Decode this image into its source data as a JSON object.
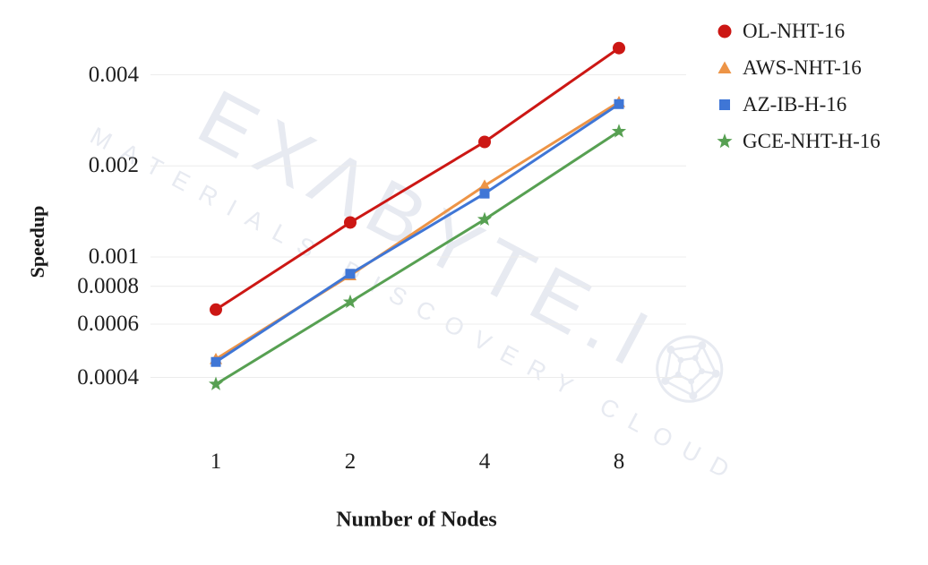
{
  "watermark": {
    "line1": "EXΛBYTE.I",
    "line2": "MATERIALS DISCOVERY CLOUD",
    "color": "#e7eaf1"
  },
  "axes": {
    "y_title": "Speedup",
    "x_title": "Number of Nodes",
    "y_ticks": [
      "0.004",
      "0.002",
      "0.001",
      "0.0008",
      "0.0006",
      "0.0004"
    ],
    "x_ticks": [
      "1",
      "2",
      "4",
      "8"
    ]
  },
  "chart_data": {
    "type": "line",
    "title": "",
    "xlabel": "Number of Nodes",
    "ylabel": "Speedup",
    "x": [
      1,
      2,
      4,
      8
    ],
    "x_scale": "log2",
    "y_scale": "log10",
    "ylim": [
      0.00033,
      0.0052
    ],
    "grid": "horizontal",
    "gridline_color": "#ececec",
    "gridline_values": [
      0.004,
      0.002,
      0.001,
      0.0008,
      0.0006,
      0.0004
    ],
    "legend_position": "right",
    "series": [
      {
        "name": "OL-NHT-16",
        "color": "#cc1714",
        "marker": "circle",
        "values": [
          0.00067,
          0.0013,
          0.0024,
          0.0049
        ]
      },
      {
        "name": "AWS-NHT-16",
        "color": "#ed9446",
        "marker": "triangle",
        "values": [
          0.00046,
          0.00087,
          0.00172,
          0.00325
        ]
      },
      {
        "name": "AZ-IB-H-16",
        "color": "#3f76d6",
        "marker": "square",
        "values": [
          0.00045,
          0.00088,
          0.00162,
          0.0032
        ]
      },
      {
        "name": "GCE-NHT-H-16",
        "color": "#57a052",
        "marker": "star",
        "values": [
          0.00038,
          0.00071,
          0.00133,
          0.0026
        ]
      }
    ]
  }
}
